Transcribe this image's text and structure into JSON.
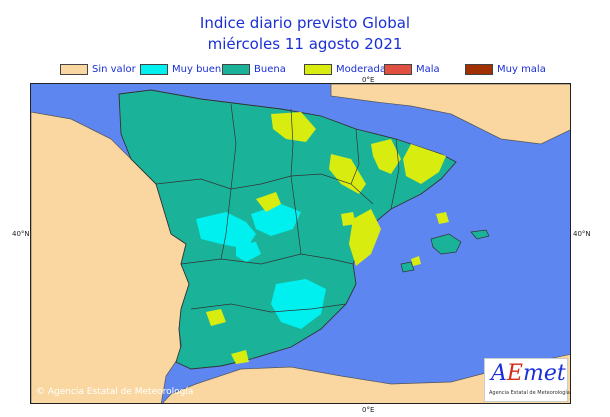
{
  "title": {
    "line1": "Indice diario previsto Global",
    "line2": "miércoles 11 agosto 2021"
  },
  "legend": [
    {
      "label": "Sin valor",
      "color": "#fad7a0"
    },
    {
      "label": "Muy buena",
      "color": "#00f0f0"
    },
    {
      "label": "Buena",
      "color": "#1ab39a"
    },
    {
      "label": "Moderada",
      "color": "#d8ec10"
    },
    {
      "label": "Mala",
      "color": "#e05040"
    },
    {
      "label": "Muy mala",
      "color": "#a03000"
    }
  ],
  "map": {
    "sea_color": "#5d86f0",
    "land_nodata_color": "#fad7a0",
    "labels": {
      "top_lon": "0°E",
      "bottom_lon": "0°E",
      "left_lat": "40°N",
      "right_lat": "40°N"
    }
  },
  "footer": {
    "copyright": "© Agencia Estatal de Meteorología",
    "logo_main": "AEmet",
    "logo_sub": "Agencia Estatal de Meteorología"
  }
}
